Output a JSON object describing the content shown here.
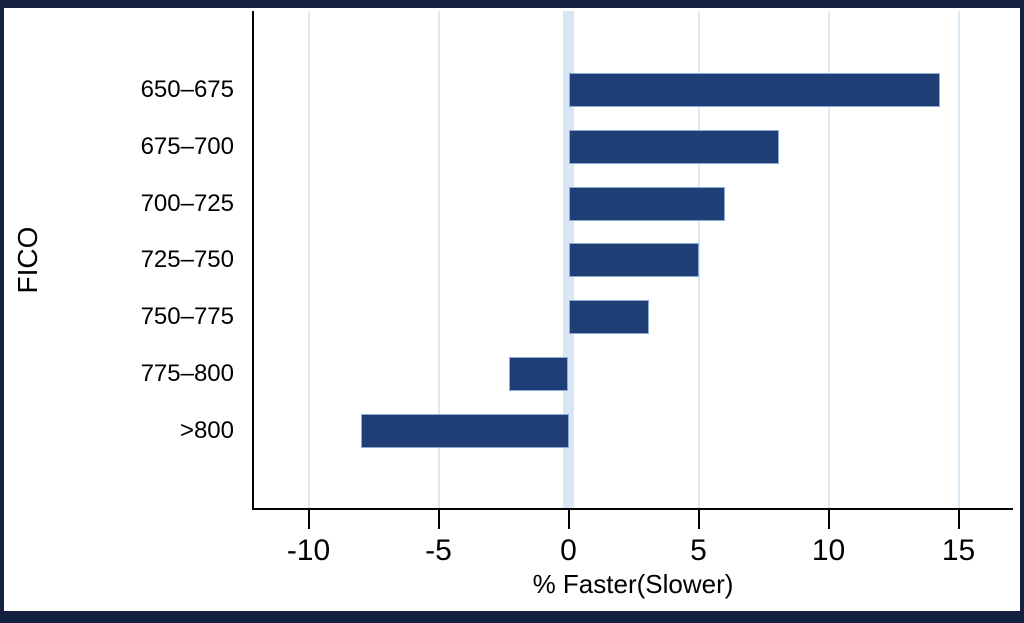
{
  "chart_data": {
    "type": "bar",
    "orientation": "horizontal",
    "title": "",
    "xlabel": "% Faster(Slower)",
    "ylabel": "FICO",
    "categories": [
      "650–675",
      "675–700",
      "700–725",
      "725–750",
      "750–775",
      "775–800",
      ">800"
    ],
    "values": [
      14.3,
      8.1,
      6,
      5,
      3.1,
      -2.3,
      -8
    ],
    "x_ticks": [
      -10,
      -5,
      0,
      5,
      10,
      15
    ],
    "xlim": [
      -12.1,
      17.1
    ],
    "legend": "none",
    "grid": "vertical gridlines at each x tick, highlighted vertical band at zero",
    "colors": {
      "bar_fill": "#1F3E76",
      "bar_outline": "#8FABD4",
      "zero_band": "#D9E6F5",
      "gridline": "#DCE9F7",
      "axis_line": "#000000",
      "frame": "#152140",
      "background": "#FFFFFF",
      "text": "#000000"
    }
  }
}
